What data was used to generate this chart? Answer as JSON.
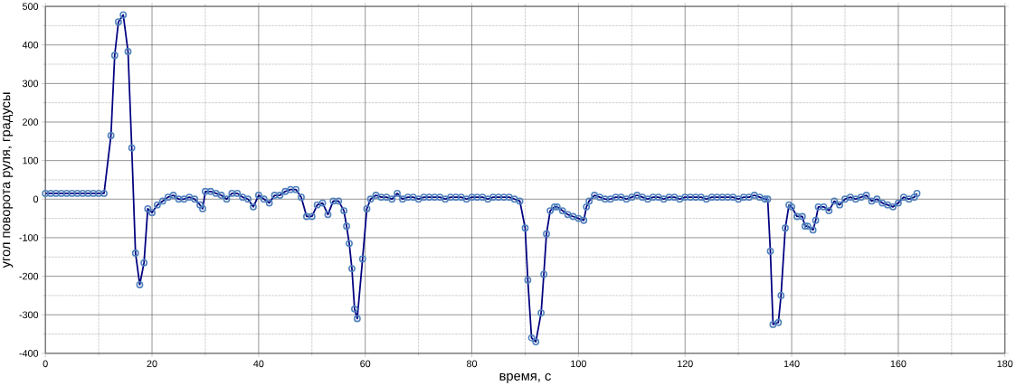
{
  "chart_data": {
    "type": "line",
    "xlabel": "время, с",
    "ylabel": "угол поворота руля, градусы",
    "xlim": [
      0,
      180
    ],
    "xticks": [
      0,
      20,
      40,
      60,
      80,
      100,
      120,
      140,
      160,
      180
    ],
    "ylim": [
      -400,
      500
    ],
    "yticks": [
      -400,
      -300,
      -200,
      -100,
      0,
      100,
      200,
      300,
      400,
      500
    ],
    "grid": true,
    "marker": "circle",
    "line_style": "solid",
    "series": [
      {
        "color": "#000080",
        "x": [
          0,
          1,
          2,
          3,
          4,
          5,
          6,
          7,
          8,
          9,
          10,
          11,
          12.3,
          13,
          13.7,
          14.6,
          15.5,
          16.2,
          16.9,
          17.7,
          18.5,
          19.2,
          20,
          21,
          22,
          23,
          24,
          25,
          26,
          27,
          28,
          29,
          29.5,
          30,
          31,
          32,
          33,
          34,
          35,
          36,
          37,
          38,
          39,
          40,
          41,
          42,
          43,
          44,
          45,
          46,
          47,
          48,
          49,
          50,
          51,
          52,
          53,
          54,
          55,
          56,
          56.5,
          57,
          57.5,
          58,
          58.5,
          59.5,
          60.3,
          61,
          62,
          63,
          64,
          65,
          66,
          67,
          68,
          69,
          70,
          71,
          72,
          73,
          74,
          75,
          76,
          77,
          78,
          79,
          80,
          81,
          82,
          83,
          84,
          85,
          86,
          87,
          88,
          89,
          90,
          90.5,
          91.2,
          92,
          93,
          93.5,
          94,
          94.7,
          95.5,
          96,
          97,
          98,
          99,
          100,
          101,
          101.5,
          102,
          103,
          104,
          105,
          106,
          107,
          108,
          109,
          110,
          111,
          112,
          113,
          114,
          115,
          116,
          117,
          118,
          119,
          120,
          121,
          122,
          123,
          124,
          125,
          126,
          127,
          128,
          129,
          130,
          131,
          132,
          133,
          134,
          135,
          135.5,
          136,
          136.5,
          137.5,
          138,
          138.8,
          139.5,
          140,
          141,
          142,
          142.5,
          143,
          144,
          144.5,
          145,
          146,
          147,
          148,
          149,
          150,
          151,
          152,
          153,
          154,
          155,
          156,
          157,
          158,
          159,
          160,
          161,
          162,
          163,
          163.5
        ],
        "values": [
          15,
          15,
          15,
          15,
          15,
          15,
          15,
          15,
          15,
          15,
          15,
          15,
          165,
          373,
          460,
          478,
          383,
          133,
          -140,
          -222,
          -165,
          -25,
          -35,
          -15,
          -5,
          5,
          10,
          0,
          0,
          5,
          0,
          -15,
          -25,
          20,
          20,
          15,
          10,
          0,
          15,
          15,
          5,
          0,
          -20,
          10,
          0,
          -10,
          10,
          10,
          20,
          25,
          25,
          5,
          -45,
          -45,
          -15,
          -10,
          -40,
          -5,
          -5,
          -30,
          -70,
          -115,
          -180,
          -285,
          -310,
          -155,
          -25,
          0,
          10,
          5,
          5,
          0,
          15,
          0,
          5,
          5,
          0,
          5,
          5,
          5,
          5,
          0,
          5,
          5,
          5,
          0,
          5,
          5,
          5,
          0,
          5,
          5,
          5,
          5,
          0,
          -5,
          -75,
          -210,
          -360,
          -370,
          -295,
          -195,
          -90,
          -30,
          -20,
          -20,
          -30,
          -40,
          -45,
          -50,
          -55,
          -20,
          -5,
          10,
          5,
          0,
          0,
          5,
          5,
          0,
          5,
          10,
          5,
          0,
          5,
          5,
          0,
          5,
          5,
          0,
          5,
          5,
          5,
          5,
          0,
          5,
          5,
          5,
          5,
          5,
          0,
          5,
          5,
          10,
          5,
          0,
          0,
          -135,
          -325,
          -320,
          -250,
          -75,
          -15,
          -20,
          -45,
          -45,
          -70,
          -70,
          -80,
          -55,
          -20,
          -20,
          -30,
          -5,
          -15,
          0,
          5,
          0,
          5,
          10,
          -5,
          0,
          -10,
          -15,
          -20,
          -10,
          5,
          0,
          5,
          15
        ]
      }
    ]
  }
}
